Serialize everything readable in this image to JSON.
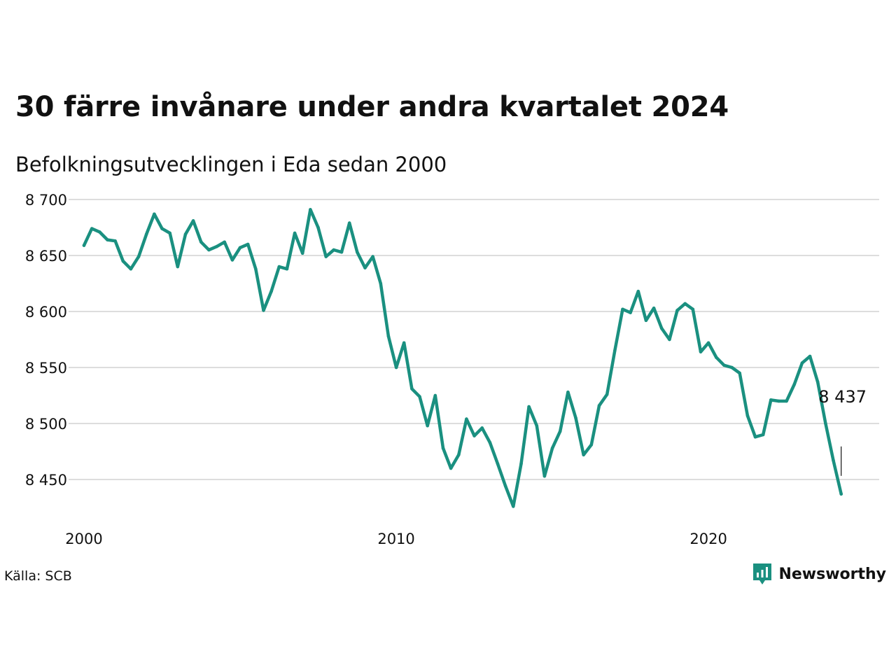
{
  "title": "30 färre invånare under andra kvartalet 2024",
  "subtitle": "Befolkningsutvecklingen i Eda sedan 2000",
  "source": "Källa: SCB",
  "brand": {
    "name": "Newsworthy"
  },
  "colors": {
    "line": "#1a9080",
    "grid": "#dddddd",
    "text": "#111111"
  },
  "chart_data": {
    "type": "line",
    "title": "30 färre invånare under andra kvartalet 2024",
    "subtitle": "Befolkningsutvecklingen i Eda sedan 2000",
    "xlabel": "",
    "ylabel": "",
    "x_ticks": [
      2000,
      2010,
      2020
    ],
    "y_ticks": [
      8450,
      8500,
      8550,
      8600,
      8650,
      8700
    ],
    "y_tick_labels": [
      "8 450",
      "8 500",
      "8 550",
      "8 600",
      "8 650",
      "8 700"
    ],
    "xlim": [
      2000.0,
      2024.75
    ],
    "ylim": [
      8420,
      8700
    ],
    "grid": true,
    "end_label": "8 437",
    "series": [
      {
        "x": [
          2000.0,
          2000.25,
          2000.5,
          2000.75,
          2001.0,
          2001.25,
          2001.5,
          2001.75,
          2002.0,
          2002.25,
          2002.5,
          2002.75,
          2003.0,
          2003.25,
          2003.5,
          2003.75,
          2004.0,
          2004.25,
          2004.5,
          2004.75,
          2005.0,
          2005.25,
          2005.5,
          2005.75,
          2006.0,
          2006.25,
          2006.5,
          2006.75,
          2007.0,
          2007.25,
          2007.5,
          2007.75,
          2008.0,
          2008.25,
          2008.5,
          2008.75,
          2009.0,
          2009.25,
          2009.5,
          2009.75,
          2010.0,
          2010.25,
          2010.5,
          2010.75,
          2011.0,
          2011.25,
          2011.5,
          2011.75,
          2012.0,
          2012.25,
          2012.5,
          2012.75,
          2013.0,
          2013.25,
          2013.5,
          2013.75,
          2014.0,
          2014.25,
          2014.5,
          2014.75,
          2015.0,
          2015.25,
          2015.5,
          2015.75,
          2016.0,
          2016.25,
          2016.5,
          2016.75,
          2017.0,
          2017.25,
          2017.5,
          2017.75,
          2018.0,
          2018.25,
          2018.5,
          2018.75,
          2019.0,
          2019.25,
          2019.5,
          2019.75,
          2020.0,
          2020.25,
          2020.5,
          2020.75,
          2021.0,
          2021.25,
          2021.5,
          2021.75,
          2022.0,
          2022.25,
          2022.5,
          2022.75,
          2023.0,
          2023.25,
          2023.5,
          2023.75,
          2024.0,
          2024.25
        ],
        "values": [
          8659,
          8674,
          8671,
          8664,
          8663,
          8645,
          8638,
          8649,
          8669,
          8687,
          8674,
          8670,
          8640,
          8669,
          8681,
          8662,
          8655,
          8658,
          8662,
          8646,
          8657,
          8660,
          8638,
          8601,
          8618,
          8640,
          8638,
          8670,
          8652,
          8691,
          8675,
          8649,
          8655,
          8653,
          8679,
          8653,
          8639,
          8649,
          8625,
          8578,
          8550,
          8572,
          8531,
          8524,
          8498,
          8525,
          8478,
          8460,
          8472,
          8504,
          8489,
          8496,
          8483,
          8464,
          8444,
          8426,
          8464,
          8515,
          8498,
          8453,
          8478,
          8493,
          8528,
          8505,
          8472,
          8481,
          8516,
          8526,
          8565,
          8602,
          8599,
          8618,
          8592,
          8603,
          8585,
          8575,
          8601,
          8607,
          8602,
          8564,
          8572,
          8559,
          8552,
          8550,
          8545,
          8507,
          8488,
          8490,
          8521,
          8520,
          8520,
          8535,
          8554,
          8560,
          8537,
          8500,
          8467,
          8437
        ]
      }
    ]
  }
}
